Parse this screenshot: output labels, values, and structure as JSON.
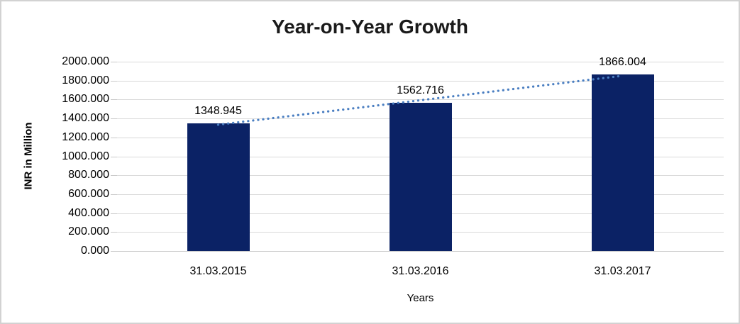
{
  "chart_data": {
    "type": "bar",
    "title": "Year-on-Year Growth",
    "categories": [
      "31.03.2015",
      "31.03.2016",
      "31.03.2017"
    ],
    "values": [
      1348.945,
      1562.716,
      1866.004
    ],
    "data_labels": [
      "1348.945",
      "1562.716",
      "1866.004"
    ],
    "xlabel": "Years",
    "ylabel": "INR in Million",
    "ylim": [
      0,
      2000
    ],
    "y_tick_step": 200,
    "y_tick_labels": [
      "0.000",
      "200.000",
      "400.000",
      "600.000",
      "800.000",
      "1000.000",
      "1200.000",
      "1400.000",
      "1600.000",
      "1800.000",
      "2000.000"
    ],
    "grid": true,
    "legend": "none",
    "trendline": {
      "type": "linear",
      "style": "dotted"
    },
    "colors": {
      "bar": "#0b2265",
      "trendline": "#4a7ec1",
      "gridline": "#d9d9d9",
      "axis_line": "#c9c9c9",
      "tick_mark": "#c9c9c9",
      "text": "#000000",
      "title": "#1a1a1a",
      "border": "#d2d2d2",
      "background": "#ffffff"
    }
  }
}
